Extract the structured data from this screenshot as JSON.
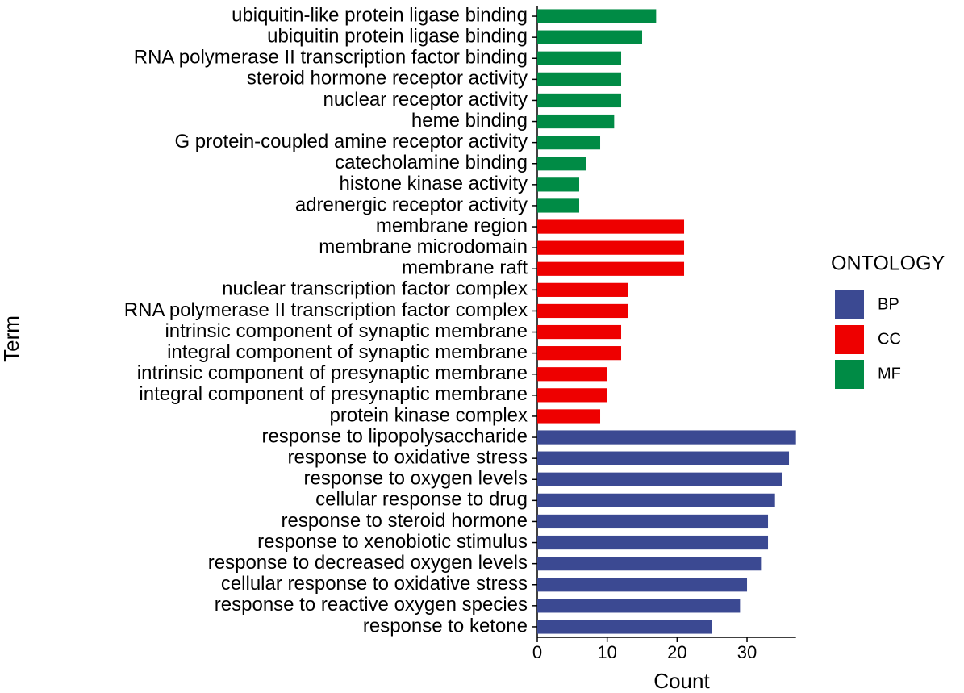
{
  "chart_data": {
    "type": "bar",
    "orientation": "horizontal",
    "x_label": "Count",
    "y_label": "Term",
    "categories": [
      "ubiquitin-like protein ligase binding",
      "ubiquitin protein ligase binding",
      "RNA polymerase II transcription factor binding",
      "steroid hormone receptor activity",
      "nuclear receptor activity",
      "heme binding",
      "G protein-coupled amine receptor activity",
      "catecholamine binding",
      "histone kinase activity",
      "adrenergic receptor activity",
      "membrane region",
      "membrane microdomain",
      "membrane raft",
      "nuclear transcription factor complex",
      "RNA polymerase II transcription factor complex",
      "intrinsic component of synaptic membrane",
      "integral component of synaptic membrane",
      "intrinsic component of presynaptic membrane",
      "integral component of presynaptic membrane",
      "protein kinase complex",
      "response to lipopolysaccharide",
      "response to oxidative stress",
      "response to oxygen levels",
      "cellular response to drug",
      "response to steroid hormone",
      "response to xenobiotic stimulus",
      "response to decreased oxygen levels",
      "cellular response to oxidative stress",
      "response to reactive oxygen species",
      "response to ketone"
    ],
    "legend_title": "ONTOLOGY",
    "series": [
      {
        "name": "BP",
        "color": "#3B4992",
        "values": [
          null,
          null,
          null,
          null,
          null,
          null,
          null,
          null,
          null,
          null,
          null,
          null,
          null,
          null,
          null,
          null,
          null,
          null,
          null,
          null,
          37,
          36,
          35,
          34,
          33,
          33,
          32,
          30,
          29,
          25
        ]
      },
      {
        "name": "CC",
        "color": "#EE0000",
        "values": [
          null,
          null,
          null,
          null,
          null,
          null,
          null,
          null,
          null,
          null,
          21,
          21,
          21,
          13,
          13,
          12,
          12,
          10,
          10,
          9,
          null,
          null,
          null,
          null,
          null,
          null,
          null,
          null,
          null,
          null
        ]
      },
      {
        "name": "MF",
        "color": "#008B45",
        "values": [
          17,
          15,
          12,
          12,
          12,
          11,
          9,
          7,
          6,
          6,
          null,
          null,
          null,
          null,
          null,
          null,
          null,
          null,
          null,
          null,
          null,
          null,
          null,
          null,
          null,
          null,
          null,
          null,
          null,
          null
        ]
      }
    ],
    "xlim": [
      0,
      37
    ],
    "xticks": [
      0,
      10,
      20,
      30
    ],
    "grid": false
  }
}
